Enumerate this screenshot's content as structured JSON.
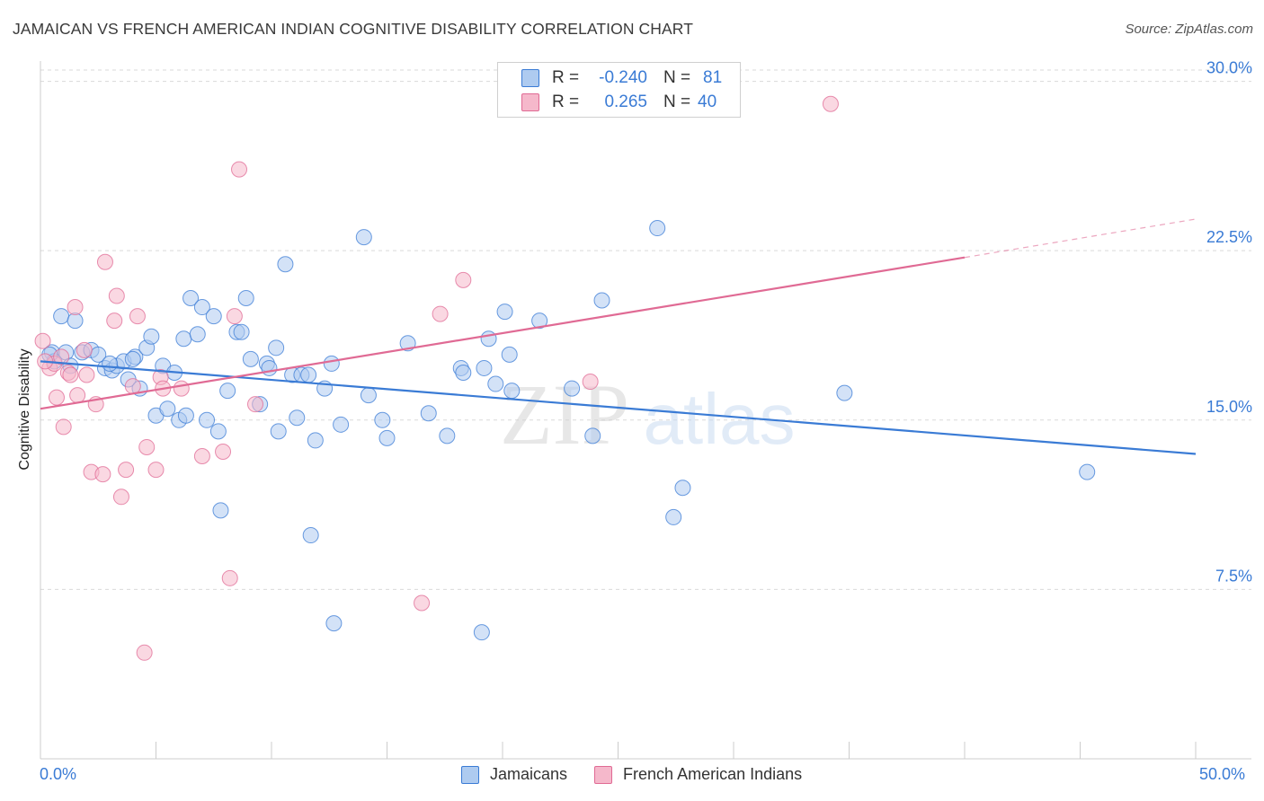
{
  "title": "JAMAICAN VS FRENCH AMERICAN INDIAN COGNITIVE DISABILITY CORRELATION CHART",
  "source": "Source: ZipAtlas.com",
  "watermark": {
    "zip": "ZIP",
    "atlas": "atlas"
  },
  "colors": {
    "blue": "#3a7bd5",
    "blue_fill": "#aecbf0",
    "pink": "#e06a94",
    "pink_fill": "#f5b8cb",
    "grid": "#d9d9d9"
  },
  "legend": {
    "rows": [
      {
        "r_label": "R =",
        "r_value": "-0.240",
        "n_label": "N =",
        "n_value": "81"
      },
      {
        "r_label": "R =",
        "r_value": "0.265",
        "n_label": "N =",
        "n_value": "40"
      }
    ]
  },
  "bottom_legend": {
    "series1": "Jamaicans",
    "series2": "French American Indians"
  },
  "chart_data": {
    "type": "scatter",
    "title": "JAMAICAN VS FRENCH AMERICAN INDIAN COGNITIVE DISABILITY CORRELATION CHART",
    "xlabel": "",
    "ylabel": "Cognitive Disability",
    "xlim": [
      0,
      50
    ],
    "ylim": [
      0,
      30.5
    ],
    "x_tick_labels": [
      "0.0%",
      "50.0%"
    ],
    "y_ticks": [
      7.5,
      15.0,
      22.5,
      30.0
    ],
    "y_tick_labels": [
      "7.5%",
      "15.0%",
      "22.5%",
      "30.0%"
    ],
    "series": [
      {
        "name": "Jamaicans",
        "color": "#3a7bd5",
        "r": -0.24,
        "n": 81,
        "trend": {
          "x0": 0,
          "y0": 17.6,
          "x1": 50,
          "y1": 13.5
        },
        "points": [
          [
            0.5,
            18.0
          ],
          [
            0.6,
            17.6
          ],
          [
            0.9,
            19.6
          ],
          [
            1.1,
            18.0
          ],
          [
            1.3,
            17.4
          ],
          [
            1.5,
            19.4
          ],
          [
            1.8,
            18.0
          ],
          [
            2.2,
            18.1
          ],
          [
            2.5,
            17.9
          ],
          [
            2.8,
            17.3
          ],
          [
            3.1,
            17.2
          ],
          [
            3.3,
            17.4
          ],
          [
            3.6,
            17.6
          ],
          [
            3.8,
            16.8
          ],
          [
            4.1,
            17.8
          ],
          [
            4.3,
            16.4
          ],
          [
            4.6,
            18.2
          ],
          [
            4.8,
            18.7
          ],
          [
            5.0,
            15.2
          ],
          [
            5.3,
            17.4
          ],
          [
            5.5,
            15.5
          ],
          [
            5.8,
            17.1
          ],
          [
            6.0,
            15.0
          ],
          [
            6.2,
            18.6
          ],
          [
            6.3,
            15.2
          ],
          [
            6.5,
            20.4
          ],
          [
            6.8,
            18.8
          ],
          [
            7.0,
            20.0
          ],
          [
            7.2,
            15.0
          ],
          [
            7.5,
            19.6
          ],
          [
            7.7,
            14.5
          ],
          [
            7.8,
            11.0
          ],
          [
            8.1,
            16.3
          ],
          [
            8.5,
            18.9
          ],
          [
            8.7,
            18.9
          ],
          [
            8.9,
            20.4
          ],
          [
            9.1,
            17.7
          ],
          [
            9.5,
            15.7
          ],
          [
            9.8,
            17.5
          ],
          [
            9.9,
            17.3
          ],
          [
            10.2,
            18.2
          ],
          [
            10.3,
            14.5
          ],
          [
            10.6,
            21.9
          ],
          [
            10.9,
            17.0
          ],
          [
            11.1,
            15.1
          ],
          [
            11.3,
            17.0
          ],
          [
            11.6,
            17.0
          ],
          [
            11.7,
            9.9
          ],
          [
            11.9,
            14.1
          ],
          [
            12.3,
            16.4
          ],
          [
            12.6,
            17.5
          ],
          [
            12.7,
            6.0
          ],
          [
            13.0,
            14.8
          ],
          [
            14.0,
            23.1
          ],
          [
            14.2,
            16.1
          ],
          [
            14.8,
            15.0
          ],
          [
            15.0,
            14.2
          ],
          [
            15.9,
            18.4
          ],
          [
            16.8,
            15.3
          ],
          [
            17.6,
            14.3
          ],
          [
            18.2,
            17.3
          ],
          [
            18.3,
            17.1
          ],
          [
            19.1,
            5.6
          ],
          [
            19.2,
            17.3
          ],
          [
            19.4,
            18.6
          ],
          [
            19.7,
            16.6
          ],
          [
            20.1,
            19.8
          ],
          [
            20.3,
            17.9
          ],
          [
            20.4,
            16.3
          ],
          [
            21.6,
            19.4
          ],
          [
            23.0,
            16.4
          ],
          [
            23.9,
            14.3
          ],
          [
            24.3,
            20.3
          ],
          [
            26.7,
            23.5
          ],
          [
            27.4,
            10.7
          ],
          [
            27.8,
            12.0
          ],
          [
            34.8,
            16.2
          ],
          [
            45.3,
            12.7
          ],
          [
            0.4,
            17.9
          ],
          [
            3.0,
            17.5
          ],
          [
            4.0,
            17.7
          ]
        ]
      },
      {
        "name": "French American Indians",
        "color": "#e06a94",
        "r": 0.265,
        "n": 40,
        "trend": {
          "x0": 0,
          "y0": 15.5,
          "x1": 40,
          "y1": 22.2
        },
        "trend_dashed": {
          "x0": 40,
          "y0": 22.2,
          "x1": 50,
          "y1": 23.9
        },
        "points": [
          [
            0.1,
            18.5
          ],
          [
            0.4,
            17.3
          ],
          [
            0.6,
            17.5
          ],
          [
            0.7,
            16.0
          ],
          [
            0.9,
            17.8
          ],
          [
            1.0,
            14.7
          ],
          [
            1.2,
            17.1
          ],
          [
            1.3,
            17.0
          ],
          [
            1.5,
            20.0
          ],
          [
            1.6,
            16.1
          ],
          [
            1.9,
            18.1
          ],
          [
            2.0,
            17.0
          ],
          [
            2.2,
            12.7
          ],
          [
            2.4,
            15.7
          ],
          [
            2.7,
            12.6
          ],
          [
            2.8,
            22.0
          ],
          [
            3.2,
            19.4
          ],
          [
            3.3,
            20.5
          ],
          [
            3.5,
            11.6
          ],
          [
            3.7,
            12.8
          ],
          [
            4.0,
            16.5
          ],
          [
            4.2,
            19.6
          ],
          [
            4.5,
            4.7
          ],
          [
            4.6,
            13.8
          ],
          [
            5.0,
            12.8
          ],
          [
            5.2,
            16.9
          ],
          [
            5.3,
            16.4
          ],
          [
            6.1,
            16.4
          ],
          [
            7.0,
            13.4
          ],
          [
            7.9,
            13.6
          ],
          [
            8.2,
            8.0
          ],
          [
            8.4,
            19.6
          ],
          [
            8.6,
            26.1
          ],
          [
            9.3,
            15.7
          ],
          [
            16.5,
            6.9
          ],
          [
            17.3,
            19.7
          ],
          [
            18.3,
            21.2
          ],
          [
            23.8,
            16.7
          ],
          [
            34.2,
            29.0
          ],
          [
            0.2,
            17.6
          ]
        ]
      }
    ]
  }
}
